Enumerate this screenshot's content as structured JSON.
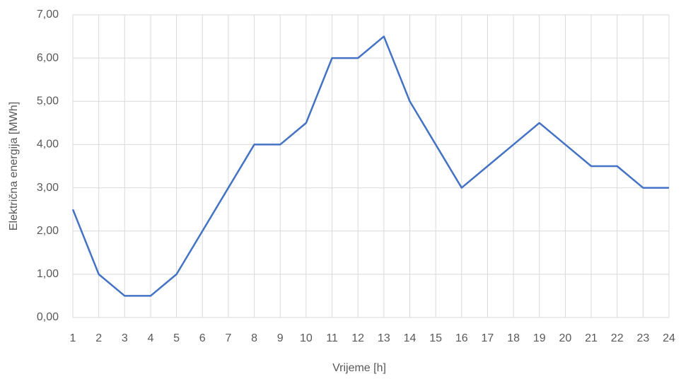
{
  "chart_data": {
    "type": "line",
    "x_label": "Vrijeme [h]",
    "y_label": "Električna energija [MWh]",
    "categories": [
      "1",
      "2",
      "3",
      "4",
      "5",
      "6",
      "7",
      "8",
      "9",
      "10",
      "11",
      "12",
      "13",
      "14",
      "15",
      "16",
      "17",
      "18",
      "19",
      "20",
      "21",
      "22",
      "23",
      "24"
    ],
    "series": [
      {
        "color": "#4472c4",
        "values": [
          2.5,
          1,
          0.5,
          0.5,
          1,
          2,
          3,
          4,
          4,
          4.5,
          6,
          6,
          6.5,
          5,
          4,
          3,
          3.5,
          4,
          4.5,
          4,
          3.5,
          3.5,
          3,
          3
        ]
      }
    ],
    "ylim": [
      0,
      7
    ],
    "yticks": [
      {
        "value": 0,
        "label": "0,00"
      },
      {
        "value": 1,
        "label": "1,00"
      },
      {
        "value": 2,
        "label": "2,00"
      },
      {
        "value": 3,
        "label": "3,00"
      },
      {
        "value": 4,
        "label": "4,00"
      },
      {
        "value": 5,
        "label": "5,00"
      },
      {
        "value": 6,
        "label": "6,00"
      },
      {
        "value": 7,
        "label": "7,00"
      }
    ],
    "grid": true
  }
}
